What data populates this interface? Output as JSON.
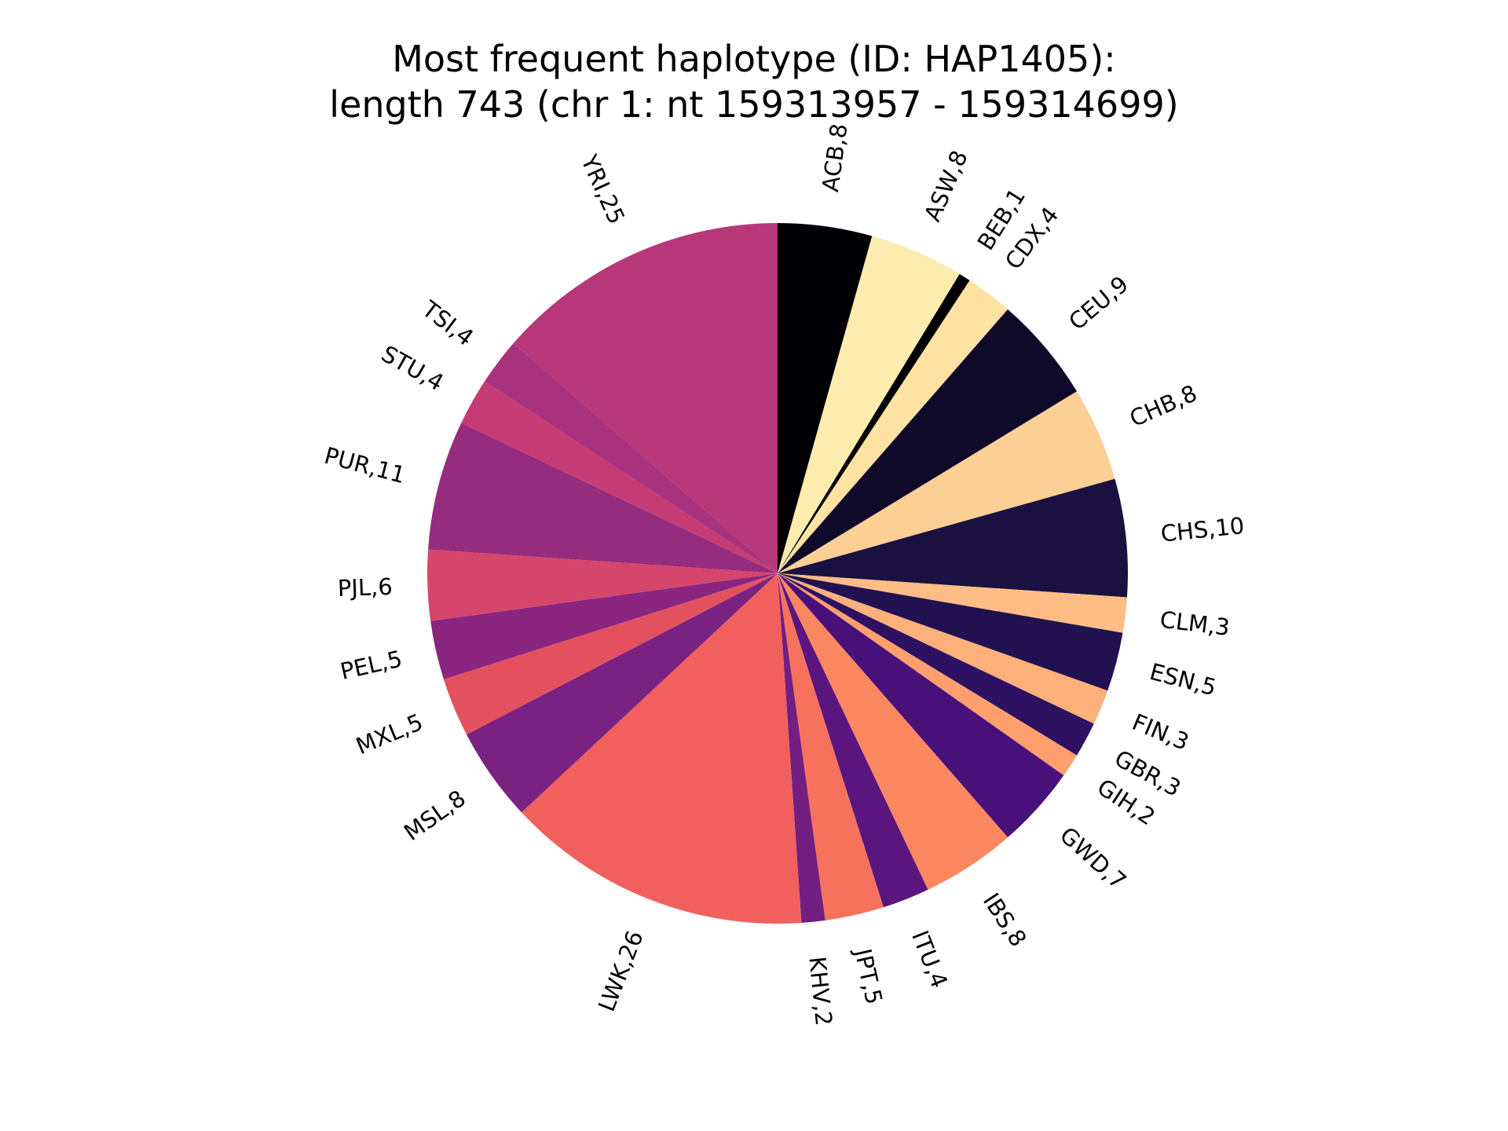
{
  "chart_data": {
    "type": "pie",
    "title_line1": "Most frequent haplotype (ID: HAP1405):",
    "title_line2": "length 743 (chr 1: nt 159313957 - 159314699)",
    "start_angle_deg": 90,
    "direction": "clockwise",
    "slices": [
      {
        "label": "ACB,8",
        "value": 8,
        "color": "#000004"
      },
      {
        "label": "ASW,8",
        "value": 8,
        "color": "#fcecae"
      },
      {
        "label": "BEB,1",
        "value": 1,
        "color": "#010005"
      },
      {
        "label": "CDX,4",
        "value": 4,
        "color": "#fde2a2"
      },
      {
        "label": "CEU,9",
        "value": 9,
        "color": "#0f0a2a"
      },
      {
        "label": "CHB,8",
        "value": 8,
        "color": "#fcd094"
      },
      {
        "label": "CHS,10",
        "value": 10,
        "color": "#1b1140"
      },
      {
        "label": "CLM,3",
        "value": 3,
        "color": "#fdbd84"
      },
      {
        "label": "ESN,5",
        "value": 5,
        "color": "#221150"
      },
      {
        "label": "FIN,3",
        "value": 3,
        "color": "#fdb07a"
      },
      {
        "label": "GBR,3",
        "value": 3,
        "color": "#2f1163"
      },
      {
        "label": "GIH,2",
        "value": 2,
        "color": "#fe9f6d"
      },
      {
        "label": "GWD,7",
        "value": 7,
        "color": "#4a1079"
      },
      {
        "label": "IBS,8",
        "value": 8,
        "color": "#fb8761"
      },
      {
        "label": "ITU,4",
        "value": 4,
        "color": "#5a167e"
      },
      {
        "label": "JPT,5",
        "value": 5,
        "color": "#f7725c"
      },
      {
        "label": "KHV,2",
        "value": 2,
        "color": "#721f81"
      },
      {
        "label": "LWK,26",
        "value": 26,
        "color": "#f1605d"
      },
      {
        "label": "MSL,8",
        "value": 8,
        "color": "#7a2282"
      },
      {
        "label": "MXL,5",
        "value": 5,
        "color": "#e3515e"
      },
      {
        "label": "PEL,5",
        "value": 5,
        "color": "#8a2680"
      },
      {
        "label": "PJL,6",
        "value": 6,
        "color": "#d6456c"
      },
      {
        "label": "PUR,11",
        "value": 11,
        "color": "#962c7d"
      },
      {
        "label": "STU,4",
        "value": 4,
        "color": "#c53c74"
      },
      {
        "label": "TSI,4",
        "value": 4,
        "color": "#a8327d"
      },
      {
        "label": "YRI,25",
        "value": 25,
        "color": "#b73779"
      }
    ]
  }
}
